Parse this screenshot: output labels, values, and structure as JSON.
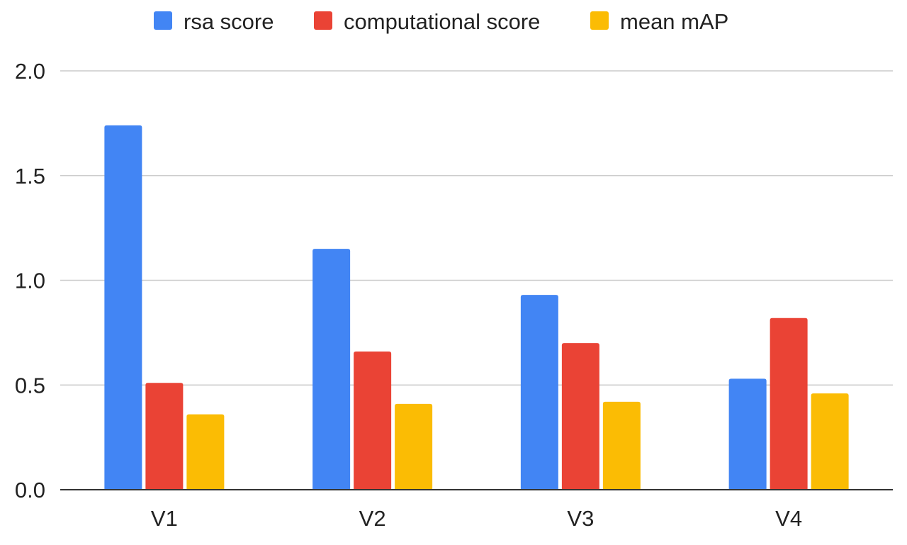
{
  "chart_data": {
    "type": "bar",
    "categories": [
      "V1",
      "V2",
      "V3",
      "V4"
    ],
    "series": [
      {
        "name": "rsa score",
        "color": "#4285f4",
        "values": [
          1.74,
          1.15,
          0.93,
          0.53
        ]
      },
      {
        "name": "computational score",
        "color": "#ea4335",
        "values": [
          0.51,
          0.66,
          0.7,
          0.82
        ]
      },
      {
        "name": "mean mAP",
        "color": "#fbbc04",
        "values": [
          0.36,
          0.41,
          0.42,
          0.46
        ]
      }
    ],
    "title": "",
    "xlabel": "",
    "ylabel": "",
    "ylim": [
      0,
      2
    ],
    "yticks": [
      0,
      0.5,
      1,
      1.5,
      2
    ],
    "ytick_labels": [
      "0.0",
      "0.5",
      "1.0",
      "1.5",
      "2.0"
    ],
    "grid": true,
    "legend_position": "top"
  }
}
